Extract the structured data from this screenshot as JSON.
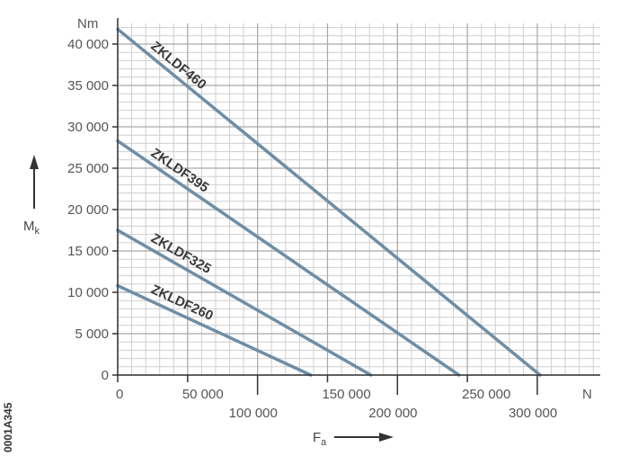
{
  "figure_code": "0001A345",
  "chart_data": {
    "type": "line",
    "title": "",
    "xlabel": "F",
    "xlabel_sub": "a",
    "ylabel": "M",
    "ylabel_sub": "k",
    "x_unit": "N",
    "y_unit": "Nm",
    "xlim": [
      0,
      345000
    ],
    "ylim": [
      0,
      42500
    ],
    "x_ticks_upper": [
      {
        "value": 0,
        "label": "0"
      },
      {
        "value": 50000,
        "label": "50 000"
      },
      {
        "value": 150000,
        "label": "150 000"
      },
      {
        "value": 250000,
        "label": "250 000"
      }
    ],
    "x_ticks_lower": [
      {
        "value": 100000,
        "label": "100 000"
      },
      {
        "value": 200000,
        "label": "200 000"
      },
      {
        "value": 300000,
        "label": "300 000"
      }
    ],
    "y_ticks": [
      {
        "value": 0,
        "label": "0"
      },
      {
        "value": 5000,
        "label": "5 000"
      },
      {
        "value": 10000,
        "label": "10 000"
      },
      {
        "value": 15000,
        "label": "15 000"
      },
      {
        "value": 20000,
        "label": "20 000"
      },
      {
        "value": 25000,
        "label": "25 000"
      },
      {
        "value": 30000,
        "label": "30 000"
      },
      {
        "value": 35000,
        "label": "35 000"
      },
      {
        "value": 40000,
        "label": "40 000"
      }
    ],
    "grid": true,
    "series_color": "#6e8ea6",
    "series": [
      {
        "name": "ZKLDF460",
        "x": [
          0,
          302000
        ],
        "y": [
          41800,
          0
        ]
      },
      {
        "name": "ZKLDF395",
        "x": [
          0,
          244000
        ],
        "y": [
          28300,
          0
        ]
      },
      {
        "name": "ZKLDF325",
        "x": [
          0,
          181000
        ],
        "y": [
          17500,
          0
        ]
      },
      {
        "name": "ZKLDF260",
        "x": [
          0,
          138000
        ],
        "y": [
          10800,
          0
        ]
      }
    ]
  }
}
